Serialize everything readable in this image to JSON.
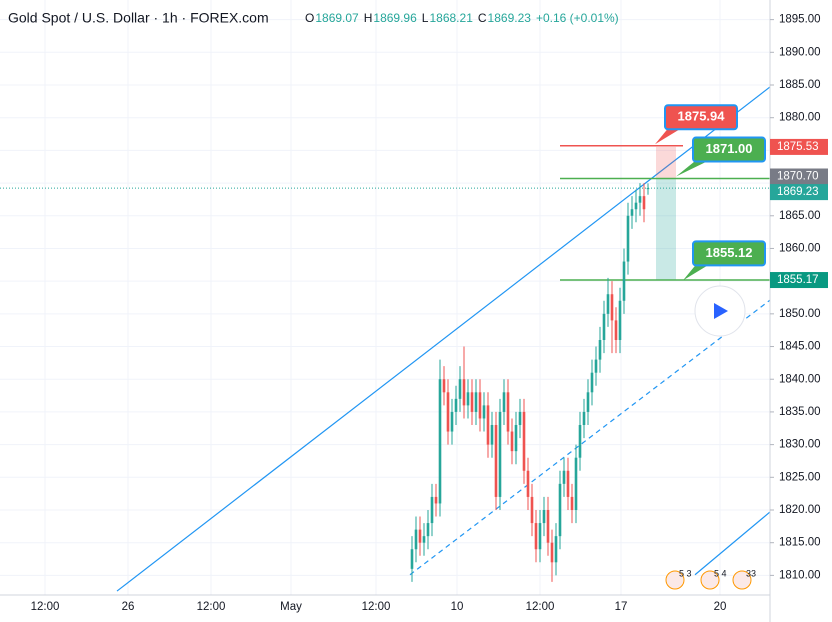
{
  "chart_data": {
    "type": "candlestick",
    "title": "Gold Spot / U.S. Dollar · 1h · FOREX.com",
    "ohlc_header": [
      {
        "key": "O",
        "text": "1869.07"
      },
      {
        "key": "H",
        "text": "1869.96"
      },
      {
        "key": "L",
        "text": "1868.21"
      },
      {
        "key": "C",
        "text": "1869.23"
      }
    ],
    "change": "+0.16 (+0.01%)",
    "up_color": "#26a69a",
    "down_color": "#ef5350",
    "ylim": [
      1807,
      1898
    ],
    "yticks": [
      {
        "value": 1810,
        "label": "1810.00"
      },
      {
        "value": 1815,
        "label": "1815.00"
      },
      {
        "value": 1820,
        "label": "1820.00"
      },
      {
        "value": 1825,
        "label": "1825.00"
      },
      {
        "value": 1830,
        "label": "1830.00"
      },
      {
        "value": 1835,
        "label": "1835.00"
      },
      {
        "value": 1840,
        "label": "1840.00"
      },
      {
        "value": 1845,
        "label": "1845.00"
      },
      {
        "value": 1850,
        "label": "1850.00"
      },
      {
        "value": 1855,
        "label": "1855.00"
      },
      {
        "value": 1860,
        "label": "1860.00"
      },
      {
        "value": 1865,
        "label": "1865.00"
      },
      {
        "value": 1870,
        "label": "1870.00"
      },
      {
        "value": 1875,
        "label": "1875.00"
      },
      {
        "value": 1880,
        "label": "1880.00"
      },
      {
        "value": 1885,
        "label": "1885.00"
      },
      {
        "value": 1890,
        "label": "1890.00"
      },
      {
        "value": 1895,
        "label": "1895.00"
      }
    ],
    "xtick_labels": [
      "12:00",
      "26",
      "12:00",
      "May",
      "12:00",
      "10",
      "12:00",
      "17",
      "20"
    ],
    "open": [
      1811,
      1814,
      1817,
      1815,
      1816,
      1818,
      1822,
      1821,
      1840,
      1838,
      1832,
      1835,
      1837,
      1840,
      1836,
      1838,
      1835,
      1838,
      1834,
      1836,
      1830,
      1833,
      1822,
      1835,
      1838,
      1832,
      1829,
      1833,
      1835,
      1826,
      1822,
      1818,
      1814,
      1818,
      1820,
      1815,
      1812,
      1816,
      1824,
      1826,
      1822,
      1820,
      1828,
      1833,
      1835,
      1838,
      1841,
      1843,
      1846,
      1850,
      1853,
      1849,
      1846,
      1852,
      1858,
      1865,
      1866,
      1867,
      1868,
      1869.07
    ],
    "high": [
      1816,
      1819,
      1819,
      1818,
      1820,
      1824,
      1824,
      1843,
      1842,
      1840,
      1837,
      1839,
      1842,
      1845,
      1840,
      1840,
      1840,
      1840,
      1838,
      1838,
      1835,
      1835,
      1837,
      1840,
      1840,
      1834,
      1835,
      1837,
      1837,
      1828,
      1824,
      1820,
      1820,
      1822,
      1822,
      1817,
      1818,
      1826,
      1828,
      1828,
      1824,
      1830,
      1835,
      1837,
      1840,
      1843,
      1845,
      1848,
      1852,
      1855.5,
      1855,
      1851,
      1854,
      1860,
      1867,
      1868,
      1869,
      1870,
      1870,
      1869.96
    ],
    "low": [
      1809,
      1812,
      1813,
      1813,
      1814,
      1816,
      1819,
      1819,
      1836,
      1830,
      1830,
      1833,
      1835,
      1834,
      1834,
      1833,
      1833,
      1832,
      1832,
      1828,
      1828,
      1820,
      1820,
      1833,
      1830,
      1827,
      1827,
      1831,
      1824,
      1820,
      1816,
      1812,
      1812,
      1816,
      1813,
      1809,
      1810,
      1814,
      1822,
      1820,
      1818,
      1818,
      1826,
      1831,
      1833,
      1836,
      1839,
      1841,
      1844,
      1848,
      1844,
      1844,
      1844,
      1850,
      1856,
      1863,
      1864,
      1865,
      1864,
      1868.21
    ],
    "close": [
      1814,
      1817,
      1815,
      1816,
      1818,
      1822,
      1821,
      1840,
      1838,
      1832,
      1835,
      1837,
      1840,
      1836,
      1838,
      1835,
      1838,
      1834,
      1836,
      1830,
      1833,
      1822,
      1835,
      1838,
      1832,
      1829,
      1833,
      1835,
      1826,
      1822,
      1818,
      1814,
      1818,
      1820,
      1815,
      1812,
      1816,
      1824,
      1826,
      1822,
      1820,
      1828,
      1833,
      1835,
      1838,
      1841,
      1843,
      1846,
      1850,
      1853,
      1849,
      1846,
      1852,
      1858,
      1865,
      1866,
      1867,
      1868,
      1866,
      1869.23
    ],
    "trendlines": [
      {
        "from": 1807.6,
        "to": 1884.7,
        "style": "solid"
      },
      {
        "from": 1810.1,
        "to": 1852.1,
        "style": "dashed"
      },
      {
        "from": 1810.1,
        "to": 1819.7,
        "style": "solid"
      }
    ],
    "hlines": [
      {
        "value": 1875.7,
        "color": "#ef5350"
      },
      {
        "value": 1870.7,
        "color": "#4caf50"
      },
      {
        "value": 1855.17,
        "color": "#4caf50"
      }
    ],
    "price_labels": [
      {
        "value": 1875.53,
        "label": "1875.53",
        "color": "#ef5350"
      },
      {
        "value": 1870.7,
        "label": "1870.70",
        "color": "#787b86"
      },
      {
        "value": 1869.23,
        "label": "1869.23",
        "color": "#26a69a"
      },
      {
        "value": 1855.17,
        "label": "1855.17",
        "color": "#089981"
      }
    ],
    "callouts": [
      {
        "value": 1875.94,
        "label": "1875.94",
        "color": "#ef5350"
      },
      {
        "value": 1871,
        "label": "1871.00",
        "color": "#4caf50"
      },
      {
        "value": 1855.12,
        "label": "1855.12",
        "color": "#4caf50"
      }
    ],
    "events": [
      "5 3",
      "5 4",
      "33"
    ]
  }
}
